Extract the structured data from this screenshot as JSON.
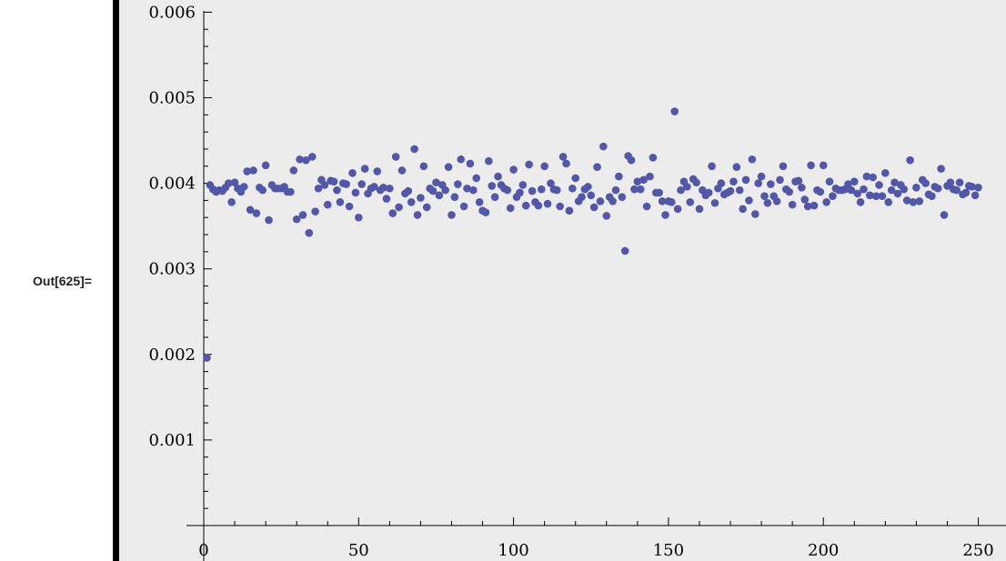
{
  "cell": {
    "out_label": "Out[625]="
  },
  "chart_data": {
    "type": "scatter",
    "title": "",
    "xlabel": "",
    "ylabel": "",
    "xlim": [
      0,
      256
    ],
    "ylim": [
      0,
      0.006
    ],
    "grid": false,
    "x_ticks": [
      "0",
      "50",
      "100",
      "150",
      "200",
      "250"
    ],
    "y_ticks": [
      "0.001",
      "0.002",
      "0.003",
      "0.004",
      "0.005",
      "0.006"
    ],
    "marker_color": "#5257a8",
    "background_color": "#ececec",
    "series": [
      {
        "x_start": 1,
        "x_step": 1,
        "values": [
          0.00196,
          0.00398,
          0.00393,
          0.0039,
          0.00392,
          0.00391,
          0.00395,
          0.004,
          0.00378,
          0.00401,
          0.00394,
          0.0039,
          0.00396,
          0.00414,
          0.00369,
          0.00415,
          0.00365,
          0.00395,
          0.00392,
          0.00421,
          0.00357,
          0.00398,
          0.00394,
          0.00394,
          0.00394,
          0.00396,
          0.0039,
          0.0039,
          0.00415,
          0.00358,
          0.00428,
          0.00363,
          0.00427,
          0.00342,
          0.00431,
          0.00367,
          0.00394,
          0.00404,
          0.00398,
          0.00375,
          0.00403,
          0.00402,
          0.00392,
          0.00378,
          0.004,
          0.00399,
          0.00373,
          0.00412,
          0.00389,
          0.0036,
          0.00399,
          0.00417,
          0.00388,
          0.00394,
          0.00396,
          0.00414,
          0.00392,
          0.00395,
          0.00382,
          0.00394,
          0.00365,
          0.00431,
          0.00372,
          0.00415,
          0.00388,
          0.00391,
          0.00378,
          0.0044,
          0.00363,
          0.00383,
          0.0042,
          0.00372,
          0.00394,
          0.00391,
          0.00401,
          0.00386,
          0.00398,
          0.00392,
          0.00419,
          0.00363,
          0.00384,
          0.00399,
          0.00428,
          0.00373,
          0.00394,
          0.00423,
          0.00392,
          0.00406,
          0.00378,
          0.00368,
          0.00366,
          0.00426,
          0.00397,
          0.00384,
          0.00408,
          0.00398,
          0.00394,
          0.00392,
          0.00371,
          0.00416,
          0.00384,
          0.00389,
          0.00398,
          0.00374,
          0.00422,
          0.00391,
          0.00378,
          0.00374,
          0.00393,
          0.0042,
          0.00376,
          0.004,
          0.00393,
          0.00392,
          0.00373,
          0.00431,
          0.00423,
          0.00368,
          0.00394,
          0.00406,
          0.00379,
          0.00384,
          0.00393,
          0.00396,
          0.00386,
          0.00372,
          0.00419,
          0.00379,
          0.00443,
          0.00362,
          0.00384,
          0.00379,
          0.00392,
          0.00408,
          0.00384,
          0.00321,
          0.00432,
          0.00427,
          0.00393,
          0.00402,
          0.00393,
          0.00404,
          0.00373,
          0.00408,
          0.0043,
          0.00389,
          0.00389,
          0.00379,
          0.00363,
          0.00379,
          0.00378,
          0.00484,
          0.0037,
          0.00392,
          0.00402,
          0.00396,
          0.00378,
          0.00405,
          0.00401,
          0.0037,
          0.00392,
          0.00386,
          0.00389,
          0.0042,
          0.00377,
          0.00394,
          0.004,
          0.00387,
          0.00389,
          0.00391,
          0.00402,
          0.00419,
          0.00392,
          0.0037,
          0.00404,
          0.0038,
          0.00428,
          0.00364,
          0.004,
          0.00408,
          0.00385,
          0.00377,
          0.00399,
          0.00385,
          0.00379,
          0.00404,
          0.0042,
          0.00393,
          0.0039,
          0.00375,
          0.00402,
          0.00403,
          0.00395,
          0.00381,
          0.00373,
          0.00421,
          0.00374,
          0.00392,
          0.0039,
          0.00421,
          0.00378,
          0.00402,
          0.00385,
          0.00394,
          0.00392,
          0.00392,
          0.00393,
          0.00399,
          0.00392,
          0.00402,
          0.00388,
          0.00378,
          0.00393,
          0.00408,
          0.00386,
          0.00407,
          0.00385,
          0.00398,
          0.00385,
          0.00412,
          0.00378,
          0.00392,
          0.00401,
          0.00388,
          0.00398,
          0.00393,
          0.0038,
          0.00427,
          0.00378,
          0.00395,
          0.00379,
          0.00404,
          0.004,
          0.00387,
          0.00385,
          0.00396,
          0.00394,
          0.00417,
          0.00363,
          0.00397,
          0.00401,
          0.00393,
          0.00392,
          0.00401,
          0.00387,
          0.00389,
          0.00397,
          0.00396,
          0.00386,
          0.00395
        ]
      }
    ]
  }
}
